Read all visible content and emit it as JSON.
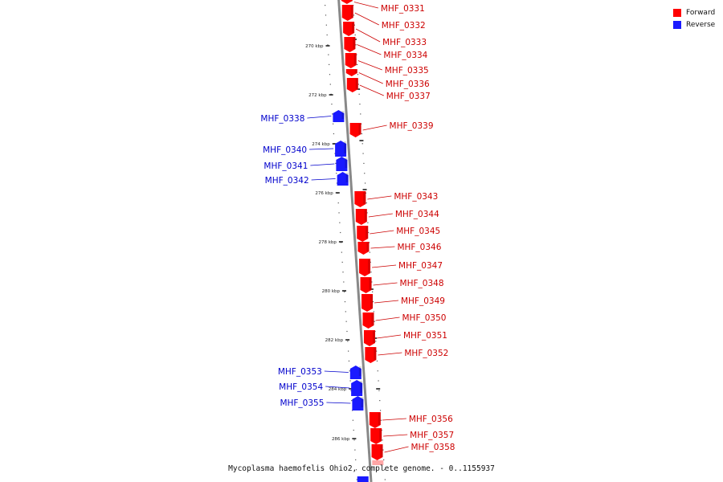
{
  "title": "Mycoplasma haemofelis Ohio2, complete genome. - 0..1155937",
  "legend": [
    {
      "label": "Forward",
      "color": "#ff0000"
    },
    {
      "label": "Reverse",
      "color": "#1a1aff"
    }
  ],
  "colors": {
    "forward": "#ff0000",
    "reverse": "#1a1aff",
    "axis": "#888888",
    "forward_label": "#cc0000",
    "reverse_label": "#0000cc"
  },
  "ticks": [
    "270 kbp",
    "272 kbp",
    "274 kbp",
    "276 kbp",
    "278 kbp",
    "280 kbp",
    "282 kbp",
    "284 kbp",
    "286 kbp"
  ],
  "genes": [
    {
      "name": "MHF_0331",
      "strand": "forward"
    },
    {
      "name": "MHF_0332",
      "strand": "forward"
    },
    {
      "name": "MHF_0333",
      "strand": "forward"
    },
    {
      "name": "MHF_0334",
      "strand": "forward"
    },
    {
      "name": "MHF_0335",
      "strand": "forward"
    },
    {
      "name": "MHF_0336",
      "strand": "forward"
    },
    {
      "name": "MHF_0337",
      "strand": "forward"
    },
    {
      "name": "MHF_0338",
      "strand": "reverse"
    },
    {
      "name": "MHF_0339",
      "strand": "forward"
    },
    {
      "name": "MHF_0340",
      "strand": "reverse"
    },
    {
      "name": "MHF_0341",
      "strand": "reverse"
    },
    {
      "name": "MHF_0342",
      "strand": "reverse"
    },
    {
      "name": "MHF_0343",
      "strand": "forward"
    },
    {
      "name": "MHF_0344",
      "strand": "forward"
    },
    {
      "name": "MHF_0345",
      "strand": "forward"
    },
    {
      "name": "MHF_0346",
      "strand": "forward"
    },
    {
      "name": "MHF_0347",
      "strand": "forward"
    },
    {
      "name": "MHF_0348",
      "strand": "forward"
    },
    {
      "name": "MHF_0349",
      "strand": "forward"
    },
    {
      "name": "MHF_0350",
      "strand": "forward"
    },
    {
      "name": "MHF_0351",
      "strand": "forward"
    },
    {
      "name": "MHF_0352",
      "strand": "forward"
    },
    {
      "name": "MHF_0353",
      "strand": "reverse"
    },
    {
      "name": "MHF_0354",
      "strand": "reverse"
    },
    {
      "name": "MHF_0355",
      "strand": "reverse"
    },
    {
      "name": "MHF_0356",
      "strand": "forward"
    },
    {
      "name": "MHF_0357",
      "strand": "forward"
    },
    {
      "name": "MHF_0358",
      "strand": "forward"
    }
  ]
}
